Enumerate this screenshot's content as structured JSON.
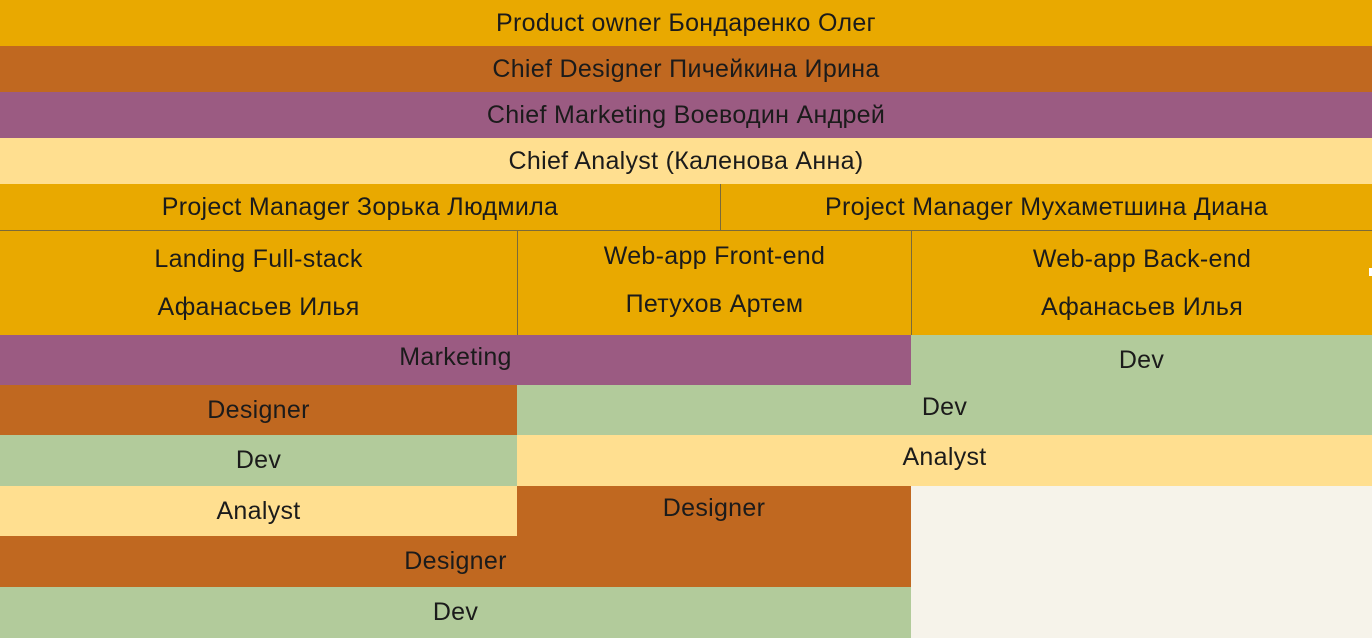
{
  "chart_data": {
    "type": "org-chart",
    "levels": {
      "product_owner": "Product owner  Бондаренко Олег",
      "chief_designer": "Chief Designer Пичейкина Ирина",
      "chief_marketing": "Chief Marketing Воеводин Андрей",
      "chief_analyst": "Chief Analyst (Каленова Анна)",
      "project_managers": [
        "Project Manager Зорька Людмила",
        "Project Manager Мухаметшина Диана"
      ],
      "teams": [
        {
          "title": "Landing Full-stack",
          "lead": "Афанасьев Илья"
        },
        {
          "title": "Web-app Front-end",
          "lead": "Петухов Артем"
        },
        {
          "title": "Web-app Back-end",
          "lead": "Афанасьев Илья"
        }
      ]
    },
    "role_blocks": [
      "Marketing",
      "Dev",
      "Designer",
      "Dev",
      "Dev",
      "Analyst",
      "Analyst",
      "Designer",
      "Designer",
      "Dev"
    ],
    "colors": {
      "gold": "#e9a900",
      "rust": "#c06820",
      "purple": "#9b5b82",
      "cream": "#ffdf90",
      "green": "#b2cb9b",
      "paper": "#f6f3ea"
    }
  }
}
